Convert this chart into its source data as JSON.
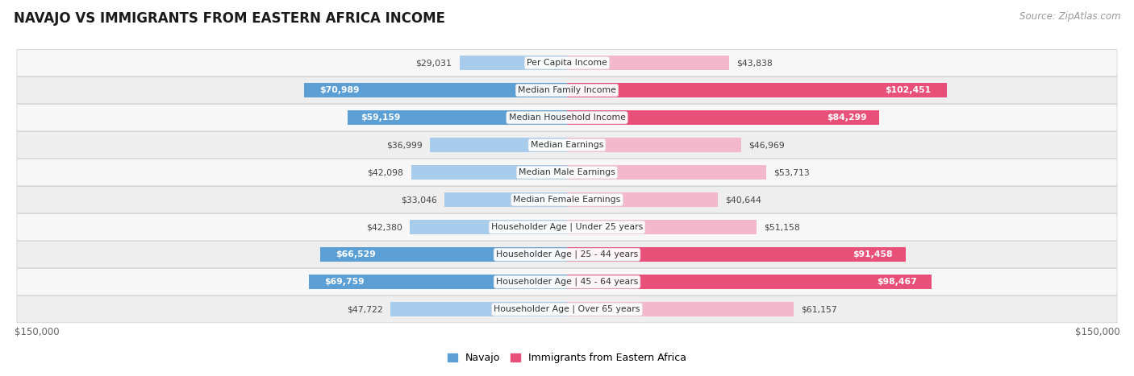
{
  "title": "NAVAJO VS IMMIGRANTS FROM EASTERN AFRICA INCOME",
  "source": "Source: ZipAtlas.com",
  "categories": [
    "Per Capita Income",
    "Median Family Income",
    "Median Household Income",
    "Median Earnings",
    "Median Male Earnings",
    "Median Female Earnings",
    "Householder Age | Under 25 years",
    "Householder Age | 25 - 44 years",
    "Householder Age | 45 - 64 years",
    "Householder Age | Over 65 years"
  ],
  "navajo_values": [
    29031,
    70989,
    59159,
    36999,
    42098,
    33046,
    42380,
    66529,
    69759,
    47722
  ],
  "eastern_africa_values": [
    43838,
    102451,
    84299,
    46969,
    53713,
    40644,
    51158,
    91458,
    98467,
    61157
  ],
  "navajo_labels": [
    "$29,031",
    "$70,989",
    "$59,159",
    "$36,999",
    "$42,098",
    "$33,046",
    "$42,380",
    "$66,529",
    "$69,759",
    "$47,722"
  ],
  "eastern_africa_labels": [
    "$43,838",
    "$102,451",
    "$84,299",
    "$46,969",
    "$53,713",
    "$40,644",
    "$51,158",
    "$91,458",
    "$98,467",
    "$61,157"
  ],
  "navajo_color_light": "#a8ccec",
  "navajo_color_dark": "#5b9fd4",
  "eastern_africa_color_light": "#f4b8cc",
  "eastern_africa_color_dark": "#e8507a",
  "navajo_threshold": 55000,
  "eastern_africa_threshold": 80000,
  "max_value": 150000,
  "bar_height": 0.52,
  "background_color": "#ffffff",
  "row_bg_light": "#f7f7f7",
  "row_bg_dark": "#eeeeee",
  "navajo_legend": "Navajo",
  "eastern_africa_legend": "Immigrants from Eastern Africa",
  "xlabel_left": "$150,000",
  "xlabel_right": "$150,000"
}
